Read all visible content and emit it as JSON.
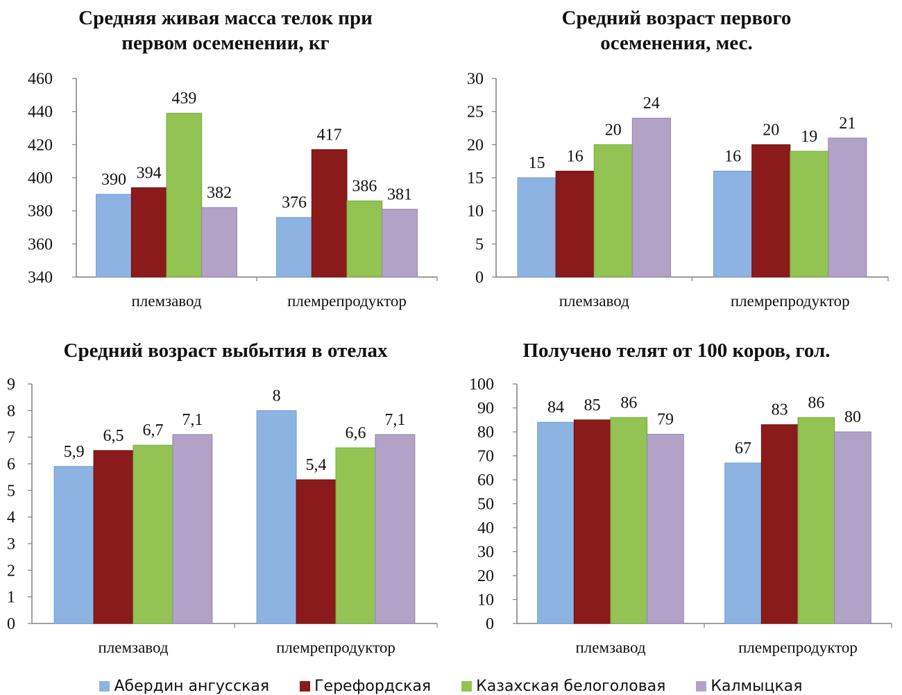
{
  "chart_data": [
    {
      "type": "bar",
      "title": "Средняя живая масса телок при\nпервом осеменении, кг",
      "categories": [
        "племзавод",
        "племрепродуктор"
      ],
      "ylim": [
        340,
        460
      ],
      "yticks": [
        340,
        360,
        380,
        400,
        420,
        440,
        460
      ],
      "series": [
        {
          "name": "Абердин ангусская",
          "values": [
            390,
            376
          ],
          "labels": [
            "390",
            "376"
          ]
        },
        {
          "name": "Герефордская",
          "values": [
            394,
            417
          ],
          "labels": [
            "394",
            "417"
          ]
        },
        {
          "name": "Казахская белоголовая",
          "values": [
            439,
            386
          ],
          "labels": [
            "439",
            "386"
          ]
        },
        {
          "name": "Калмыцкая",
          "values": [
            382,
            381
          ],
          "labels": [
            "382",
            "381"
          ]
        }
      ]
    },
    {
      "type": "bar",
      "title": "Средний возраст первого\nосеменения, мес.",
      "categories": [
        "племзавод",
        "племрепродуктор"
      ],
      "ylim": [
        0,
        30
      ],
      "yticks": [
        0,
        5,
        10,
        15,
        20,
        25,
        30
      ],
      "series": [
        {
          "name": "Абердин ангусская",
          "values": [
            15,
            16
          ],
          "labels": [
            "15",
            "16"
          ]
        },
        {
          "name": "Герефордская",
          "values": [
            16,
            20
          ],
          "labels": [
            "16",
            "20"
          ]
        },
        {
          "name": "Казахская белоголовая",
          "values": [
            20,
            19
          ],
          "labels": [
            "20",
            "19"
          ]
        },
        {
          "name": "Калмыцкая",
          "values": [
            24,
            21
          ],
          "labels": [
            "24",
            "21"
          ]
        }
      ]
    },
    {
      "type": "bar",
      "title": "Средний возраст выбытия в отелах",
      "categories": [
        "племзавод",
        "племрепродуктор"
      ],
      "ylim": [
        0,
        9
      ],
      "yticks": [
        0,
        1,
        2,
        3,
        4,
        5,
        6,
        7,
        8,
        9
      ],
      "series": [
        {
          "name": "Абердин ангусская",
          "values": [
            5.9,
            8
          ],
          "labels": [
            "5,9",
            "8"
          ]
        },
        {
          "name": "Герефордская",
          "values": [
            6.5,
            5.4
          ],
          "labels": [
            "6,5",
            "5,4"
          ]
        },
        {
          "name": "Казахская белоголовая",
          "values": [
            6.7,
            6.6
          ],
          "labels": [
            "6,7",
            "6,6"
          ]
        },
        {
          "name": "Калмыцкая",
          "values": [
            7.1,
            7.1
          ],
          "labels": [
            "7,1",
            "7,1"
          ]
        }
      ]
    },
    {
      "type": "bar",
      "title": "Получено телят от 100 коров, гол.",
      "categories": [
        "племзавод",
        "племрепродуктор"
      ],
      "ylim": [
        0,
        100
      ],
      "yticks": [
        0,
        10,
        20,
        30,
        40,
        50,
        60,
        70,
        80,
        90,
        100
      ],
      "series": [
        {
          "name": "Абердин ангусская",
          "values": [
            84,
            67
          ],
          "labels": [
            "84",
            "67"
          ]
        },
        {
          "name": "Герефордская",
          "values": [
            85,
            83
          ],
          "labels": [
            "85",
            "83"
          ]
        },
        {
          "name": "Казахская белоголовая",
          "values": [
            86,
            86
          ],
          "labels": [
            "86",
            "86"
          ]
        },
        {
          "name": "Калмыцкая",
          "values": [
            79,
            80
          ],
          "labels": [
            "79",
            "80"
          ]
        }
      ]
    }
  ],
  "legend": {
    "placement": "bottom",
    "items": [
      {
        "label": "Абердин ангусская",
        "color": "#8db3e2"
      },
      {
        "label": "Герефордская",
        "color": "#8b1a1a"
      },
      {
        "label": "Казахская белоголовая",
        "color": "#92c353"
      },
      {
        "label": "Калмыцкая",
        "color": "#b3a2c7"
      }
    ]
  }
}
